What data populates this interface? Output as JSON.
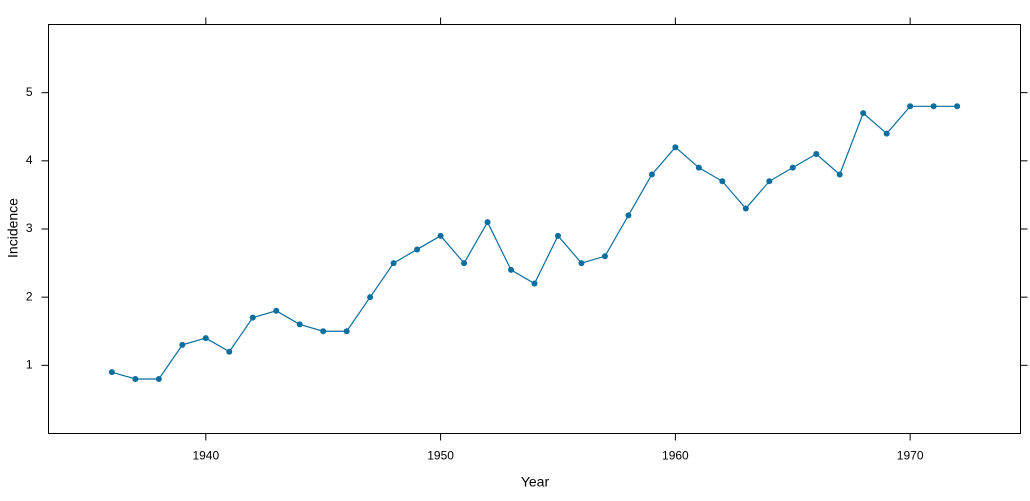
{
  "chart_data": {
    "type": "line",
    "x_label": "Year",
    "y_label": "Incidence",
    "x": [
      1936,
      1937,
      1938,
      1939,
      1940,
      1941,
      1942,
      1943,
      1944,
      1945,
      1946,
      1947,
      1948,
      1949,
      1950,
      1951,
      1952,
      1953,
      1954,
      1955,
      1956,
      1957,
      1958,
      1959,
      1960,
      1961,
      1962,
      1963,
      1964,
      1965,
      1966,
      1967,
      1968,
      1969,
      1970,
      1971,
      1972
    ],
    "series": [
      {
        "name": "Incidence",
        "color": "#0a6e9e",
        "values": [
          0.9,
          0.8,
          0.8,
          1.3,
          1.4,
          1.2,
          1.7,
          1.8,
          1.6,
          1.5,
          1.5,
          2.0,
          2.5,
          2.7,
          2.9,
          2.5,
          3.1,
          2.4,
          2.2,
          2.9,
          2.5,
          2.6,
          3.2,
          3.8,
          4.2,
          3.9,
          3.7,
          3.3,
          3.7,
          3.9,
          4.1,
          3.8,
          4.7,
          4.4,
          4.8,
          4.8,
          4.8
        ]
      }
    ],
    "xlim": [
      1933.3,
      1974.7
    ],
    "xticks": [
      1940,
      1950,
      1960,
      1970
    ],
    "ylim": [
      0,
      6
    ],
    "yticks": [
      1,
      2,
      3,
      4,
      5
    ]
  }
}
